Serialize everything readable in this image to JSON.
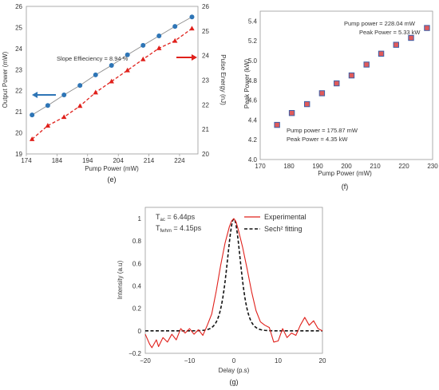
{
  "chart_data": [
    {
      "type": "line",
      "panel": "(e)",
      "xlabel": "Pump Power (mW)",
      "ylabel_left": "Output Power (mW)",
      "ylabel_right": "Pulse Energy (nJ)",
      "xlim": [
        174,
        230
      ],
      "ylim_left": [
        19,
        26
      ],
      "ylim_right": [
        20,
        26
      ],
      "xticks": [
        "174",
        "184",
        "194",
        "204",
        "214",
        "224"
      ],
      "yticks_left": [
        "19",
        "20",
        "21",
        "22",
        "23",
        "24",
        "25",
        "26"
      ],
      "yticks_right": [
        "20",
        "21",
        "22",
        "23",
        "24",
        "25",
        "26"
      ],
      "annotation": "Slope Effieciency = 8.94 %",
      "series": [
        {
          "axis": "left",
          "color": "#2e75b6",
          "marker": "circle",
          "line_color": "#8c8c8c",
          "x": [
            175.87,
            181.0,
            186.3,
            191.5,
            196.6,
            201.8,
            207.0,
            212.1,
            217.3,
            222.5,
            228.04
          ],
          "y": [
            20.85,
            21.3,
            21.8,
            22.25,
            22.75,
            23.2,
            23.7,
            24.15,
            24.6,
            25.05,
            25.5
          ]
        },
        {
          "axis": "right",
          "color": "#e0201b",
          "marker": "triangle",
          "line_style": "dashed",
          "x": [
            175.87,
            181.0,
            186.3,
            191.5,
            196.6,
            201.8,
            207.0,
            212.1,
            217.3,
            222.5,
            228.04
          ],
          "y": [
            20.6,
            21.15,
            21.5,
            21.95,
            22.5,
            22.95,
            23.4,
            23.85,
            24.3,
            24.6,
            25.1
          ]
        }
      ]
    },
    {
      "type": "scatter",
      "panel": "(f)",
      "xlabel": "Pump Power (mW)",
      "ylabel": "Peak Power (kW)",
      "xlim": [
        170,
        230
      ],
      "ylim": [
        4.0,
        5.5
      ],
      "xticks": [
        "170",
        "180",
        "190",
        "200",
        "210",
        "220",
        "230"
      ],
      "yticks": [
        "4.0",
        "4.2",
        "4.4",
        "4.6",
        "4.8",
        "5.0",
        "5.2",
        "5.4"
      ],
      "marker_fill": "#e05a5a",
      "marker_edge": "#3b5fa8",
      "x": [
        175.87,
        181.0,
        186.3,
        191.5,
        196.6,
        201.8,
        207.0,
        212.1,
        217.3,
        222.5,
        228.04
      ],
      "y": [
        4.35,
        4.47,
        4.56,
        4.67,
        4.77,
        4.85,
        4.96,
        5.07,
        5.16,
        5.23,
        5.33
      ],
      "annotations": {
        "top_line1": "Pump power = 228.04 mW",
        "top_line2": "Peak Power = 5.33 kW",
        "bottom_line1": "Pump power = 175.87 mW",
        "bottom_line2": "Peak Power = 4.35 kW"
      }
    },
    {
      "type": "line",
      "panel": "(g)",
      "xlabel": "Delay (p.s)",
      "ylabel": "Intensity (a.u)",
      "xlim": [
        -20,
        20
      ],
      "ylim": [
        -0.2,
        1.1
      ],
      "xticks": [
        "−20",
        "−10",
        "0",
        "10",
        "20"
      ],
      "yticks": [
        "−0.2",
        "0",
        "0.2",
        "0.4",
        "0.6",
        "0.8",
        "1"
      ],
      "annotation": {
        "tac_base": "T",
        "tac_sub": "ac",
        "tac_val": " = 6.44ps",
        "tfw_base": "T",
        "tfw_sub": "fwhm",
        "tfw_val": " = 4.15ps"
      },
      "series": [
        {
          "name": "Experimental",
          "color": "#e0201b",
          "x": [
            -20,
            -19,
            -18.5,
            -17.5,
            -17,
            -16,
            -15,
            -14,
            -13,
            -12,
            -11,
            -10,
            -9,
            -8,
            -7,
            -6,
            -5,
            -4,
            -3,
            -2,
            -1,
            -0.5,
            0,
            0.5,
            1,
            2,
            3,
            4,
            5,
            6,
            7,
            8,
            9,
            10,
            11,
            12,
            13,
            14,
            15,
            16,
            17,
            18,
            19,
            20
          ],
          "y": [
            -0.03,
            -0.12,
            -0.15,
            -0.08,
            -0.14,
            -0.06,
            -0.1,
            -0.03,
            -0.08,
            0.02,
            -0.02,
            0.02,
            -0.03,
            0.01,
            -0.04,
            0.05,
            0.15,
            0.35,
            0.58,
            0.78,
            0.93,
            0.98,
            1.0,
            0.97,
            0.9,
            0.74,
            0.55,
            0.35,
            0.18,
            0.08,
            0.05,
            0.03,
            -0.1,
            -0.09,
            0.02,
            -0.06,
            -0.02,
            -0.04,
            0.05,
            0.12,
            0.05,
            0.09,
            0.02,
            0.0
          ]
        },
        {
          "name": "Sech² fitting",
          "color": "#111111",
          "line_style": "dashed",
          "fwhm": 6.44
        }
      ]
    }
  ]
}
